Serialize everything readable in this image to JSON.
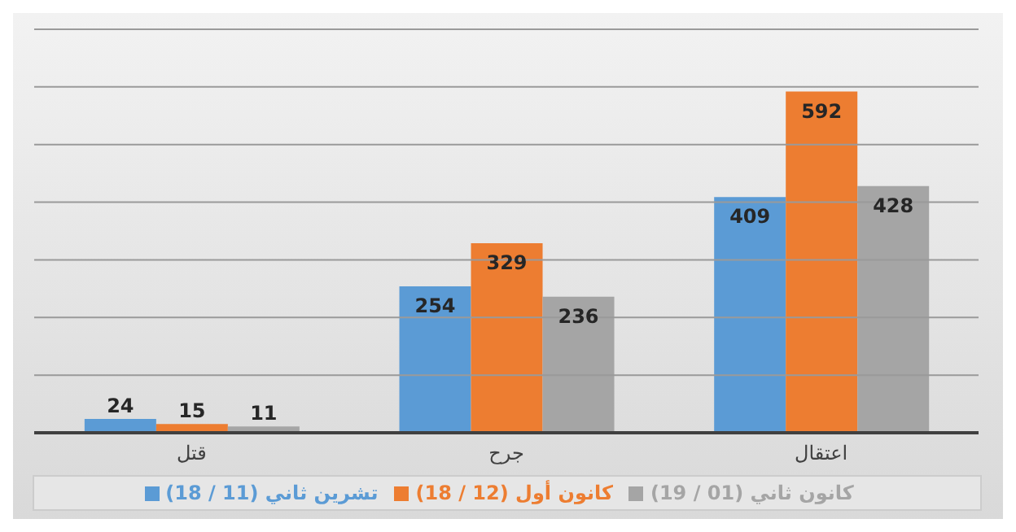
{
  "chart_data": {
    "type": "bar",
    "categories": [
      "قتل",
      "جرح",
      "اعتقال"
    ],
    "series": [
      {
        "name": "تشرين ثاني (11 / 18)",
        "color": "#5b9bd5",
        "values": [
          24,
          254,
          409
        ]
      },
      {
        "name": "كانون أول (12 / 18)",
        "color": "#ed7d31",
        "values": [
          15,
          329,
          592
        ]
      },
      {
        "name": "كانون ثاني (01 / 19)",
        "color": "#a5a5a5",
        "values": [
          11,
          236,
          428
        ]
      }
    ],
    "ylim": [
      0,
      700
    ],
    "yticks": [
      {
        "value": 0,
        "label": null
      },
      {
        "value": 100,
        "label": null
      },
      {
        "value": 200,
        "label": null
      },
      {
        "value": 300,
        "label": null
      },
      {
        "value": 400,
        "label": null
      },
      {
        "value": 500,
        "label": null
      },
      {
        "value": 600,
        "label": null
      },
      {
        "value": 700,
        "label": null
      }
    ],
    "tick_labels": "x",
    "grid": "y",
    "legend": "bottom",
    "data_labels": true
  }
}
